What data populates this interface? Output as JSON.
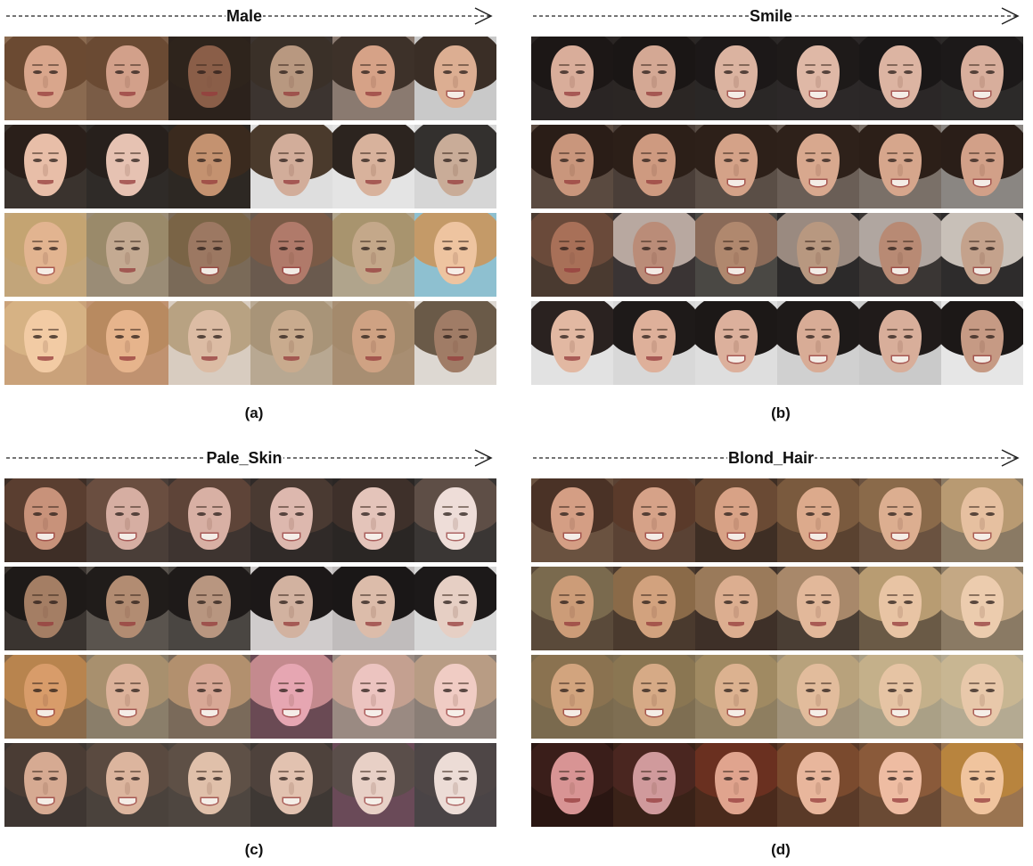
{
  "panels": [
    {
      "id": "a",
      "attribute": "Male",
      "caption": "(a)",
      "rows": [
        {
          "hair": [
            "#6b4a32",
            "#6a4a33",
            "#2e241c",
            "#3a3028",
            "#3d3129",
            "#3a2e26"
          ],
          "skin": [
            "#d9a68c",
            "#d2a08a",
            "#8a5e48",
            "#b89880",
            "#d6a287",
            "#dcae92"
          ],
          "bg": [
            "#8a6a50",
            "#7a5c46",
            "#2c221c",
            "#3c3430",
            "#8a7a70",
            "#c9c9c9"
          ],
          "smile": [
            false,
            false,
            false,
            false,
            false,
            true
          ]
        },
        {
          "hair": [
            "#2a1f1a",
            "#27201c",
            "#3a2a1e",
            "#4a3a2c",
            "#2c241f",
            "#33302e"
          ],
          "skin": [
            "#e8bea8",
            "#e6c2b2",
            "#c49270",
            "#d2ad9a",
            "#d8b29c",
            "#c9ac98"
          ],
          "bg": [
            "#3a332e",
            "#2f2b28",
            "#2d2823",
            "#dedede",
            "#e4e4e4",
            "#d6d6d6"
          ],
          "smile": [
            false,
            false,
            false,
            false,
            false,
            false
          ]
        },
        {
          "hair": [
            "#c4a472",
            "#9a8a6a",
            "#7a6446",
            "#7a5a46",
            "#a8946e",
            "#c49a68"
          ],
          "skin": [
            "#e2b490",
            "#c4aa92",
            "#9c7862",
            "#b07a6a",
            "#c4a88a",
            "#eec4a0"
          ],
          "bg": [
            "#c2a57a",
            "#9a8c76",
            "#7a6a58",
            "#6a5a4e",
            "#b0a48c",
            "#8ec0d0"
          ],
          "smile": [
            true,
            false,
            true,
            true,
            false,
            true
          ]
        },
        {
          "hair": [
            "#d6b284",
            "#b88a60",
            "#b8a282",
            "#a89478",
            "#a48a6c",
            "#6a5a48"
          ],
          "skin": [
            "#f2cba4",
            "#e6b48c",
            "#dcbca4",
            "#c9ab8e",
            "#cfa283",
            "#a07c66"
          ],
          "bg": [
            "#caa27a",
            "#c09270",
            "#d8ccc0",
            "#b8a892",
            "#a88e72",
            "#ddd8d2"
          ],
          "smile": [
            false,
            false,
            false,
            false,
            false,
            false
          ]
        }
      ]
    },
    {
      "id": "b",
      "attribute": "Smile",
      "caption": "(b)",
      "rows": [
        {
          "hair": [
            "#1c1716",
            "#1a1615",
            "#1c1818",
            "#1e1a19",
            "#1a1717",
            "#1c1919"
          ],
          "skin": [
            "#d9ad9a",
            "#d4a894",
            "#dbb3a0",
            "#dfb8a6",
            "#dcb4a2",
            "#d8ae9c"
          ],
          "bg": [
            "#2a2524",
            "#2b2624",
            "#2a2726",
            "#2c2828",
            "#2b2727",
            "#2c2a29"
          ],
          "smile": [
            false,
            false,
            true,
            true,
            true,
            true
          ]
        },
        {
          "hair": [
            "#2a1d17",
            "#2c1f18",
            "#2d2019",
            "#2e211a",
            "#2c1f18",
            "#2a1e18"
          ],
          "skin": [
            "#c9967c",
            "#ce9a80",
            "#d4a288",
            "#d8a88e",
            "#d6a68c",
            "#d2a088"
          ],
          "bg": [
            "#5a4a40",
            "#4a3e38",
            "#5a4e46",
            "#6a5e56",
            "#7a7068",
            "#8a8682"
          ],
          "smile": [
            false,
            false,
            true,
            true,
            true,
            true
          ]
        },
        {
          "hair": [
            "#6a4a3a",
            "#b8a8a0",
            "#8a6a58",
            "#9a8a80",
            "#b0a6a0",
            "#c8c0b8"
          ],
          "skin": [
            "#a87058",
            "#ba8c78",
            "#b0886e",
            "#b89880",
            "#b88a74",
            "#c4a28c"
          ],
          "bg": [
            "#4a3a30",
            "#3a3434",
            "#4a4844",
            "#2c2a2a",
            "#3a3634",
            "#2e2c2c"
          ],
          "smile": [
            false,
            true,
            true,
            true,
            true,
            true
          ]
        },
        {
          "hair": [
            "#2a2220",
            "#1e1a19",
            "#1c1817",
            "#1e1a19",
            "#201b1a",
            "#1c1817"
          ],
          "skin": [
            "#e2b8a2",
            "#deb09a",
            "#dcb09c",
            "#d8ac96",
            "#d8ae9a",
            "#c69a84"
          ],
          "bg": [
            "#e2e2e2",
            "#d8d8d8",
            "#dedede",
            "#d0d0d0",
            "#cacaca",
            "#e6e6e6"
          ],
          "smile": [
            false,
            false,
            true,
            true,
            true,
            true
          ]
        }
      ]
    },
    {
      "id": "c",
      "attribute": "Pale_Skin",
      "caption": "(c)",
      "rows": [
        {
          "hair": [
            "#5a3e30",
            "#6a4e40",
            "#5e4438",
            "#4a3a32",
            "#3e302a",
            "#5e4e46"
          ],
          "skin": [
            "#c8927a",
            "#d6aea2",
            "#d8b0a4",
            "#ddb8ae",
            "#e4c4ba",
            "#eeddd8"
          ],
          "bg": [
            "#3e2e26",
            "#4a3e38",
            "#3e3430",
            "#302a28",
            "#2a2624",
            "#3a3634"
          ],
          "smile": [
            true,
            true,
            true,
            true,
            true,
            true
          ]
        },
        {
          "hair": [
            "#1e1a18",
            "#201c1a",
            "#1e1a19",
            "#1c1818",
            "#1a1717",
            "#1c1919"
          ],
          "skin": [
            "#a47e64",
            "#b28c72",
            "#b89680",
            "#d2b2a0",
            "#dcbcaa",
            "#e6cfc4"
          ],
          "bg": [
            "#3a3430",
            "#5a544e",
            "#4a4642",
            "#d0cccc",
            "#c0bcbc",
            "#d8d8d8"
          ],
          "smile": [
            false,
            false,
            false,
            false,
            false,
            false
          ]
        },
        {
          "hair": [
            "#b8844e",
            "#a8906e",
            "#b2906e",
            "#c48a8e",
            "#c4a090",
            "#b89c84"
          ],
          "skin": [
            "#d89c6a",
            "#dcb29a",
            "#d8a896",
            "#e6a6b2",
            "#ecc4c0",
            "#f0ccc4"
          ],
          "bg": [
            "#8a6a4a",
            "#8a7e6a",
            "#7a6a5a",
            "#6a4a54",
            "#9a8a82",
            "#8a7e76"
          ],
          "smile": [
            true,
            true,
            true,
            true,
            true,
            true
          ]
        },
        {
          "hair": [
            "#4a3c34",
            "#5a4a40",
            "#5e5046",
            "#4e423c",
            "#5a4e4a",
            "#4e4646"
          ],
          "skin": [
            "#d6aa92",
            "#dcb59e",
            "#e0c0aa",
            "#e2c2b0",
            "#e8d0c6",
            "#ecdcd6"
          ],
          "bg": [
            "#3e3632",
            "#4a423c",
            "#4e4640",
            "#3e3834",
            "#6a4a58",
            "#4a4446"
          ],
          "smile": [
            true,
            true,
            true,
            true,
            true,
            true
          ]
        }
      ]
    },
    {
      "id": "d",
      "attribute": "Blond_Hair",
      "caption": "(d)",
      "rows": [
        {
          "hair": [
            "#4a3226",
            "#5a3a2a",
            "#6a4a34",
            "#7a5a3e",
            "#8a6a4a",
            "#b89a72"
          ],
          "skin": [
            "#d49e84",
            "#d6a288",
            "#d8a286",
            "#dcaa8c",
            "#dcae90",
            "#e6c0a0"
          ],
          "bg": [
            "#6a5240",
            "#5a4234",
            "#3e2e24",
            "#5a4230",
            "#6a5240",
            "#8a7a64"
          ],
          "smile": [
            true,
            true,
            true,
            true,
            true,
            true
          ]
        },
        {
          "hair": [
            "#7a6a4e",
            "#8a6a48",
            "#9a7a5a",
            "#a8886a",
            "#b89c72",
            "#c4a884"
          ],
          "skin": [
            "#cc9c78",
            "#d2a27e",
            "#dcae90",
            "#e2b89a",
            "#e8c4a4",
            "#ecccae"
          ],
          "bg": [
            "#5a4a3a",
            "#4a3a2e",
            "#3e3028",
            "#4a3e34",
            "#6a5a46",
            "#8a7a64"
          ],
          "smile": [
            false,
            false,
            false,
            false,
            false,
            false
          ]
        },
        {
          "hair": [
            "#8a7250",
            "#8a7652",
            "#a08a62",
            "#b8a27c",
            "#c4b08a",
            "#c8b692"
          ],
          "skin": [
            "#d2a47e",
            "#d6aa86",
            "#dcb290",
            "#e2bc9c",
            "#e6c4a4",
            "#e8c8aa"
          ],
          "bg": [
            "#7a6a4e",
            "#7e6e52",
            "#8e7e60",
            "#a0927a",
            "#aaa086",
            "#b4aa92"
          ],
          "smile": [
            true,
            true,
            true,
            true,
            true,
            true
          ]
        },
        {
          "hair": [
            "#3a1e1a",
            "#4a2620",
            "#6a3020",
            "#7a4a2e",
            "#8a5a3a",
            "#b8843e"
          ],
          "skin": [
            "#d89494",
            "#d09a9c",
            "#e0a48e",
            "#e8b69c",
            "#eebca2",
            "#f0c49e"
          ],
          "bg": [
            "#2a1612",
            "#3a2218",
            "#4a2a1c",
            "#5a3a28",
            "#6a4a34",
            "#9a7450"
          ],
          "smile": [
            false,
            false,
            false,
            false,
            false,
            false
          ]
        }
      ]
    }
  ]
}
